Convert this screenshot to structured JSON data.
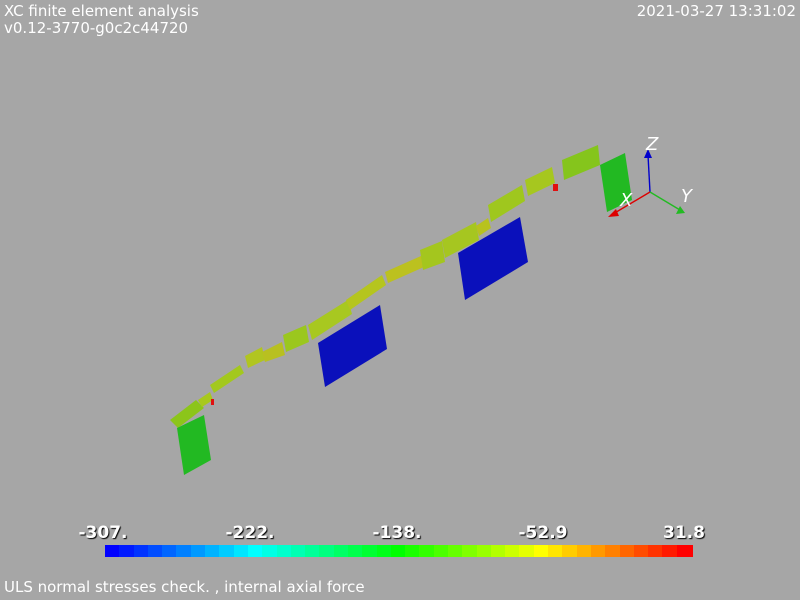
{
  "header": {
    "title": "XC finite element analysis",
    "version": "v0.12-3770-g0c2c44720",
    "timestamp": "2021-03-27 13:31:02"
  },
  "footer": {
    "caption": "ULS normal stresses check. , internal axial force"
  },
  "axes_triad": {
    "x_label": "X",
    "y_label": "Y",
    "z_label": "Z",
    "colors": {
      "x": "#dd0000",
      "y": "#22bb22",
      "z": "#0000cc"
    }
  },
  "colorbar": {
    "ticks": [
      "-307.",
      "-222.",
      "-138.",
      "-52.9",
      "31.8"
    ],
    "min": -307,
    "max": 31.8,
    "colors": [
      "#0000ff",
      "#00ffff",
      "#00ff00",
      "#ffff00",
      "#ff0000"
    ],
    "segments": 41
  }
}
